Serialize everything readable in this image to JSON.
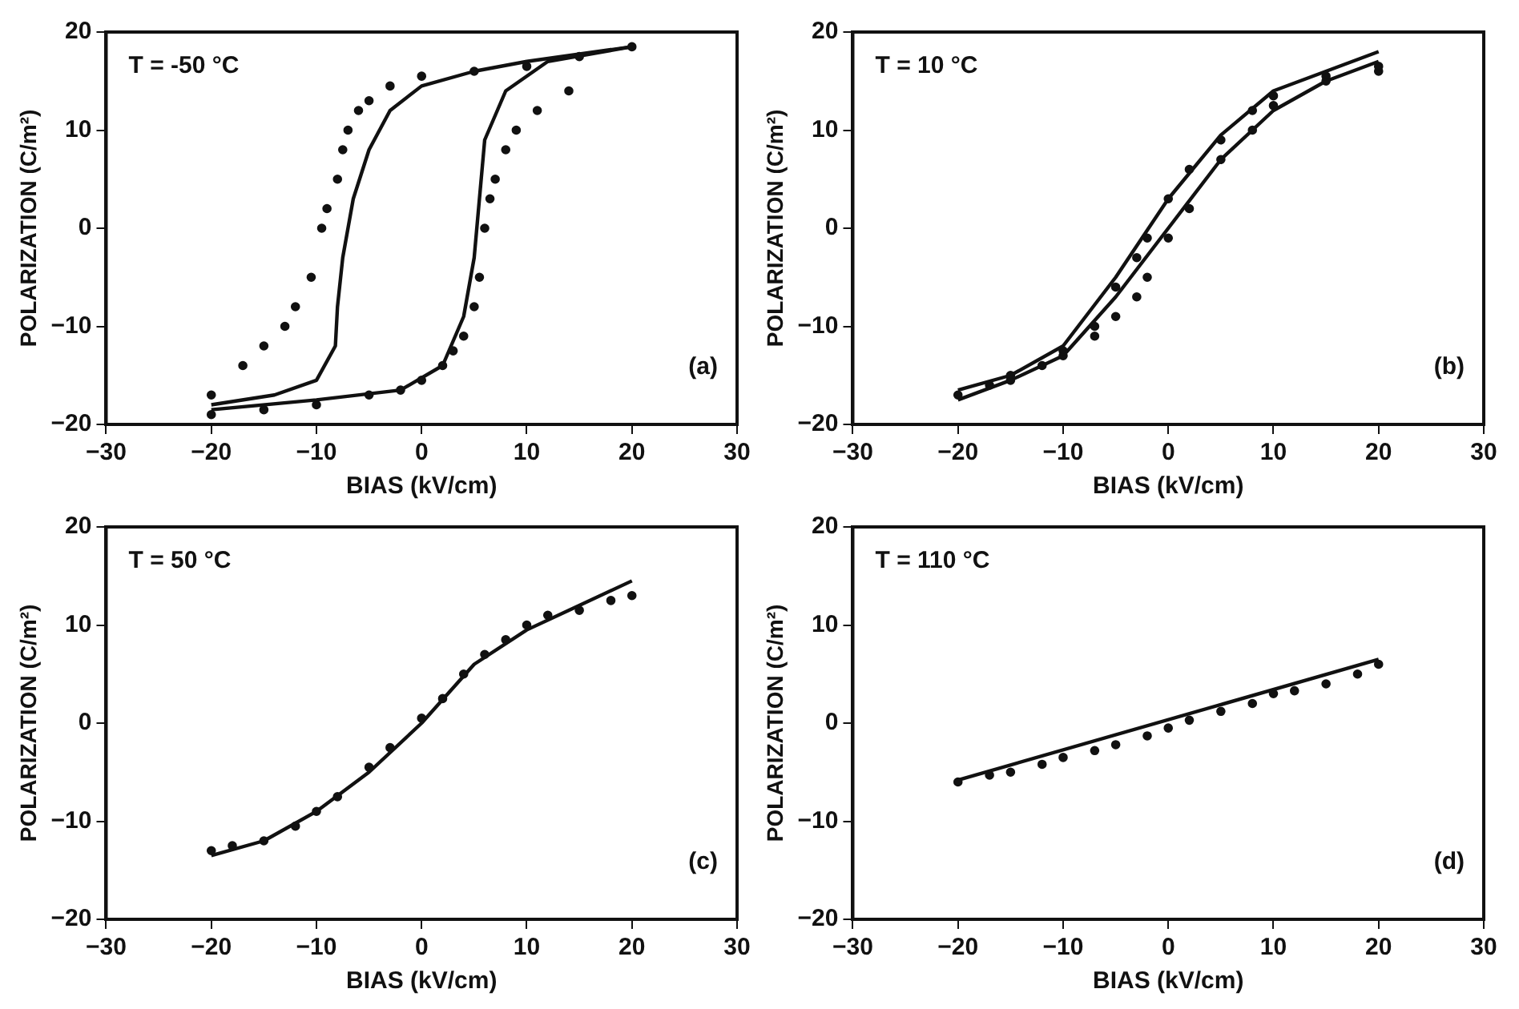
{
  "chart_data": [
    {
      "type": "scatter",
      "xlabel": "BIAS (kV/cm)",
      "ylabel": "POLARIZATION (C/m²)",
      "annotations": [
        "T = -50 °C",
        "(a)"
      ],
      "xlim": [
        -30,
        30
      ],
      "ylim": [
        -20,
        20
      ],
      "xticks": [
        -30,
        -20,
        -10,
        0,
        10,
        20,
        30
      ],
      "yticks": [
        -20,
        -10,
        0,
        10,
        20
      ],
      "grid": false,
      "legend": false,
      "series": [
        {
          "type": "scatter",
          "marker": "circle",
          "color": "#111111",
          "x": [
            20,
            15,
            10,
            5,
            0,
            -3,
            -5,
            -6,
            -7,
            -7.5,
            -8,
            -9,
            -9.5,
            -10.5,
            -12,
            -13,
            -15,
            -17,
            -20,
            -20,
            -15,
            -10,
            -5,
            -2,
            0,
            2,
            3,
            4,
            5,
            5.5,
            6,
            6.5,
            7,
            8,
            9,
            11,
            14
          ],
          "values": [
            18.5,
            17.5,
            16.5,
            16,
            15.5,
            14.5,
            13,
            12,
            10,
            8,
            5,
            2,
            0,
            -5,
            -8,
            -10,
            -12,
            -14,
            -17,
            -19,
            -18.5,
            -18,
            -17,
            -16.5,
            -15.5,
            -14,
            -12.5,
            -11,
            -8,
            -5,
            0,
            3,
            5,
            8,
            10,
            12,
            14
          ]
        },
        {
          "type": "line",
          "marker": "none",
          "color": "#111111",
          "x": [
            -20,
            -14,
            -10,
            -8.2,
            -8,
            -7.5,
            -6.5,
            -5,
            -3,
            0,
            5,
            10,
            20
          ],
          "values": [
            -18,
            -17,
            -15.5,
            -12,
            -8,
            -3,
            3,
            8,
            12,
            14.5,
            16,
            17,
            18.5
          ]
        },
        {
          "type": "line",
          "marker": "none",
          "color": "#111111",
          "x": [
            -20,
            -10,
            -2,
            2,
            4,
            5,
            5.5,
            6,
            8,
            12,
            20
          ],
          "values": [
            -18.5,
            -17.5,
            -16.5,
            -14,
            -9,
            -3,
            3,
            9,
            14,
            17,
            18.5
          ]
        }
      ]
    },
    {
      "type": "scatter",
      "xlabel": "BIAS (kV/cm)",
      "ylabel": "POLARIZATION (C/m²)",
      "annotations": [
        "T = 10 °C",
        "(b)"
      ],
      "xlim": [
        -30,
        30
      ],
      "ylim": [
        -20,
        20
      ],
      "xticks": [
        -30,
        -20,
        -10,
        0,
        10,
        20,
        30
      ],
      "yticks": [
        -20,
        -10,
        0,
        10,
        20
      ],
      "grid": false,
      "legend": false,
      "series": [
        {
          "type": "scatter",
          "marker": "circle",
          "color": "#111111",
          "x": [
            -20,
            -17,
            -15,
            -12,
            -10,
            -7,
            -5,
            -3,
            -2,
            0,
            2,
            5,
            8,
            10,
            15,
            20,
            20,
            15,
            10,
            8,
            5,
            2,
            0,
            -2,
            -3,
            -5,
            -7,
            -10,
            -15
          ],
          "values": [
            -17,
            -16,
            -15.5,
            -14,
            -13,
            -10,
            -6,
            -3,
            -1,
            3,
            6,
            9,
            12,
            13.5,
            15,
            16,
            16.5,
            15.5,
            12.5,
            10,
            7,
            2,
            -1,
            -5,
            -7,
            -9,
            -11,
            -12.5,
            -15
          ]
        },
        {
          "type": "line",
          "marker": "none",
          "color": "#111111",
          "x": [
            -20,
            -15,
            -10,
            -5,
            0,
            5,
            10,
            15,
            20
          ],
          "values": [
            -17.5,
            -15.5,
            -13,
            -7,
            0,
            7,
            12,
            15,
            17
          ]
        },
        {
          "type": "line",
          "marker": "none",
          "color": "#111111",
          "x": [
            -20,
            -15,
            -10,
            -5,
            0,
            5,
            10,
            15,
            20
          ],
          "values": [
            -16.5,
            -15,
            -12,
            -5,
            3,
            9.5,
            14,
            16,
            18
          ]
        }
      ]
    },
    {
      "type": "scatter",
      "xlabel": "BIAS (kV/cm)",
      "ylabel": "POLARIZATION (C/m²)",
      "annotations": [
        "T = 50 °C",
        "(c)"
      ],
      "xlim": [
        -30,
        30
      ],
      "ylim": [
        -20,
        20
      ],
      "xticks": [
        -30,
        -20,
        -10,
        0,
        10,
        20,
        30
      ],
      "yticks": [
        -20,
        -10,
        0,
        10,
        20
      ],
      "grid": false,
      "legend": false,
      "series": [
        {
          "type": "scatter",
          "marker": "circle",
          "color": "#111111",
          "x": [
            -20,
            -18,
            -15,
            -12,
            -10,
            -8,
            -5,
            -3,
            0,
            2,
            4,
            6,
            8,
            10,
            12,
            15,
            18,
            20
          ],
          "values": [
            -13,
            -12.5,
            -12,
            -10.5,
            -9,
            -7.5,
            -4.5,
            -2.5,
            0.5,
            2.5,
            5,
            7,
            8.5,
            10,
            11,
            11.5,
            12.5,
            13
          ]
        },
        {
          "type": "line",
          "marker": "none",
          "color": "#111111",
          "x": [
            -20,
            -15,
            -10,
            -5,
            0,
            5,
            10,
            15,
            20
          ],
          "values": [
            -13.5,
            -12,
            -9,
            -5,
            0,
            6,
            9.5,
            12,
            14.5
          ]
        }
      ]
    },
    {
      "type": "scatter",
      "xlabel": "BIAS (kV/cm)",
      "ylabel": "POLARIZATION (C/m²)",
      "annotations": [
        "T = 110 °C",
        "(d)"
      ],
      "xlim": [
        -30,
        30
      ],
      "ylim": [
        -20,
        20
      ],
      "xticks": [
        -30,
        -20,
        -10,
        0,
        10,
        20,
        30
      ],
      "yticks": [
        -20,
        -10,
        0,
        10,
        20
      ],
      "grid": false,
      "legend": false,
      "series": [
        {
          "type": "scatter",
          "marker": "circle",
          "color": "#111111",
          "x": [
            -20,
            -17,
            -15,
            -12,
            -10,
            -7,
            -5,
            -2,
            0,
            2,
            5,
            8,
            10,
            12,
            15,
            18,
            20
          ],
          "values": [
            -6,
            -5.3,
            -5,
            -4.2,
            -3.5,
            -2.8,
            -2.2,
            -1.3,
            -0.5,
            0.3,
            1.2,
            2,
            3,
            3.3,
            4,
            5,
            6
          ]
        },
        {
          "type": "line",
          "marker": "none",
          "color": "#111111",
          "x": [
            -20,
            20
          ],
          "values": [
            -5.8,
            6.5
          ]
        }
      ]
    }
  ]
}
